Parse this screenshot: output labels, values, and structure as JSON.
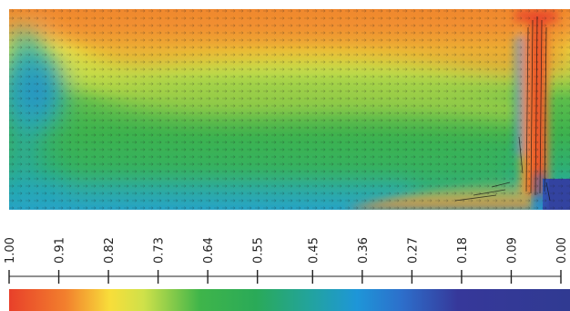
{
  "chart_data": {
    "type": "heatmap",
    "title": "",
    "colorbar": {
      "orientation": "horizontal",
      "placement": "bottom",
      "range": [
        1.0,
        0.0
      ],
      "tick_labels": [
        "1.00",
        "0.91",
        "0.82",
        "0.73",
        "0.64",
        "0.55",
        "0.45",
        "0.36",
        "0.27",
        "0.18",
        "0.09",
        "0.00"
      ],
      "tick_values": [
        1.0,
        0.91,
        0.82,
        0.73,
        0.64,
        0.55,
        0.45,
        0.36,
        0.27,
        0.18,
        0.09,
        0.0
      ],
      "colormap": [
        {
          "value": 1.0,
          "color": "#e8402a"
        },
        {
          "value": 0.9,
          "color": "#f27f2d"
        },
        {
          "value": 0.82,
          "color": "#f8de3a"
        },
        {
          "value": 0.76,
          "color": "#cfe14a"
        },
        {
          "value": 0.66,
          "color": "#3fb54a"
        },
        {
          "value": 0.56,
          "color": "#2aaa58"
        },
        {
          "value": 0.46,
          "color": "#22a3a0"
        },
        {
          "value": 0.38,
          "color": "#1e96d8"
        },
        {
          "value": 0.3,
          "color": "#2d6fcb"
        },
        {
          "value": 0.2,
          "color": "#36389a"
        },
        {
          "value": 0.0,
          "color": "#303a92"
        }
      ]
    },
    "field": {
      "description_colors": {
        "top": "#f08a2e",
        "upper_band": "#e6e23f",
        "middle": "#49b84a",
        "lower_left": "#22a7a8",
        "bottom": "#2aa6c8",
        "vortex": "#2d6fcb",
        "jet": "#f0552a",
        "outlet": "#3343a0"
      },
      "vectors": "flow velocity arrows (black)"
    }
  }
}
